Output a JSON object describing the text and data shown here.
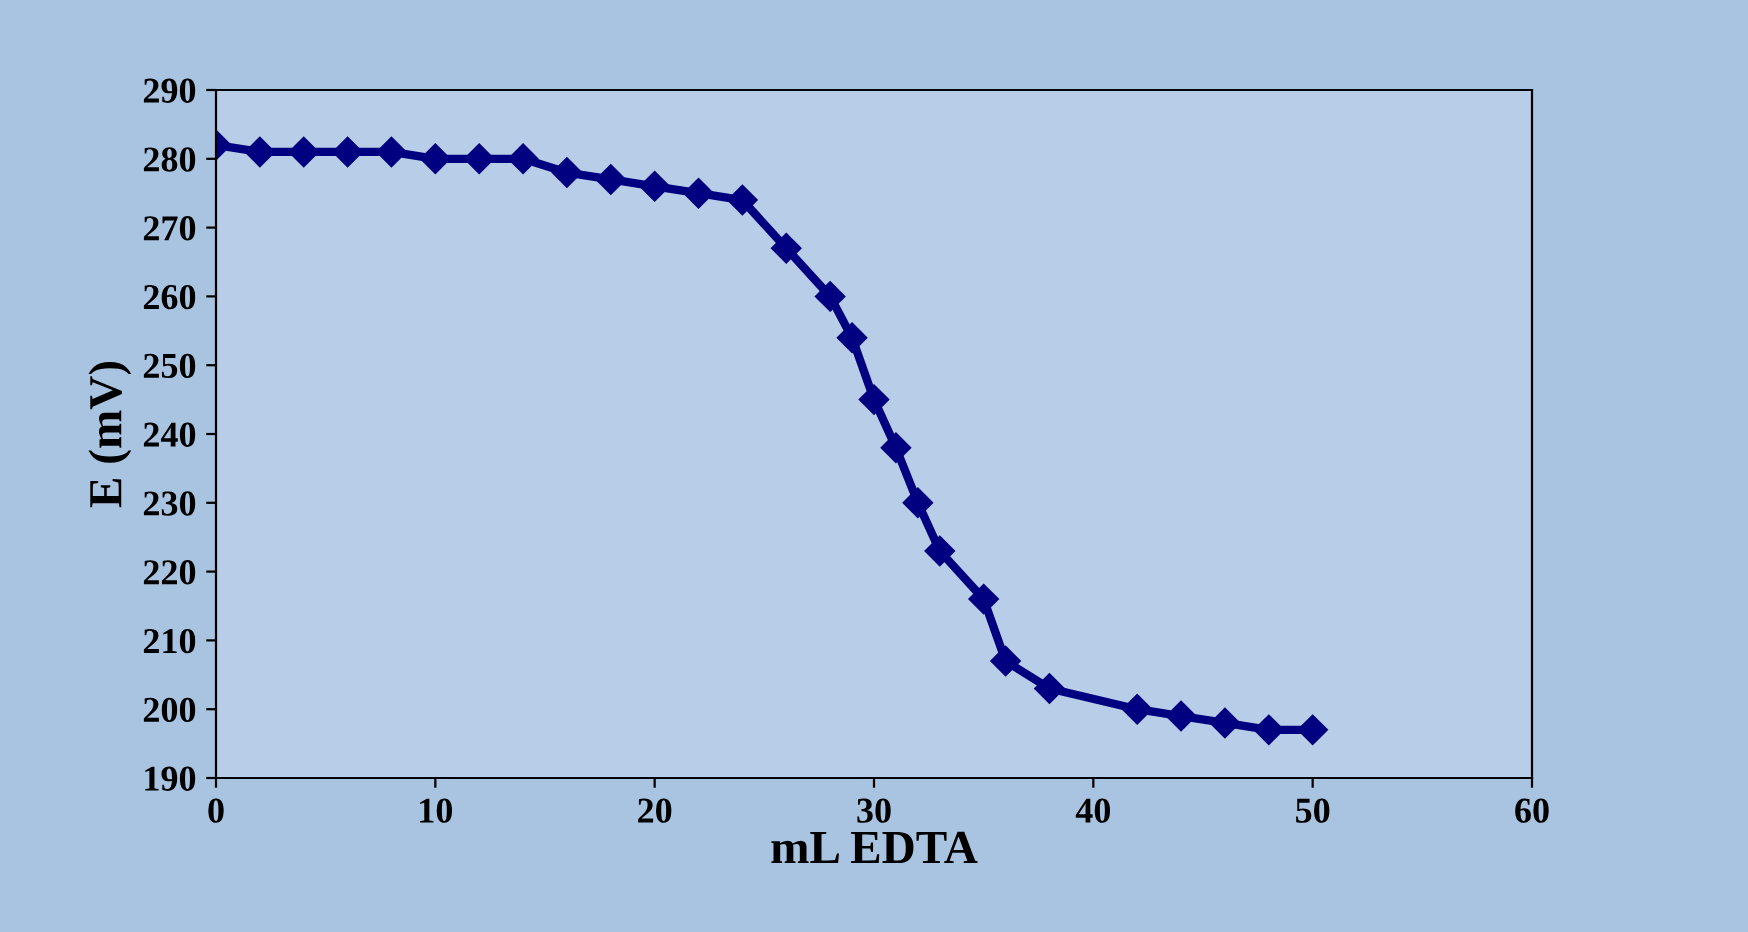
{
  "chart_data": {
    "type": "line",
    "xlabel": "mL EDTA",
    "ylabel": "E (mV)",
    "x": [
      0,
      2,
      4,
      6,
      8,
      10,
      12,
      14,
      16,
      18,
      20,
      22,
      24,
      26,
      28,
      29,
      30,
      31,
      32,
      33,
      35,
      36,
      38,
      42,
      44,
      46,
      48,
      50
    ],
    "series": [
      {
        "color": "#000080",
        "values": [
          282,
          281,
          281,
          281,
          281,
          280,
          280,
          280,
          278,
          277,
          276,
          275,
          274,
          267,
          260,
          254,
          245,
          238,
          230,
          223,
          216,
          207,
          203,
          200,
          199,
          198,
          197,
          197
        ]
      }
    ],
    "xlim": [
      0,
      60
    ],
    "xticks": [
      0,
      10,
      20,
      30,
      40,
      50,
      60
    ],
    "ylim": [
      190,
      290
    ],
    "yticks": [
      190,
      200,
      210,
      220,
      230,
      240,
      250,
      260,
      270,
      280,
      290
    ],
    "grid": false,
    "legend": false,
    "marker": "diamond",
    "line_style": "solid"
  }
}
